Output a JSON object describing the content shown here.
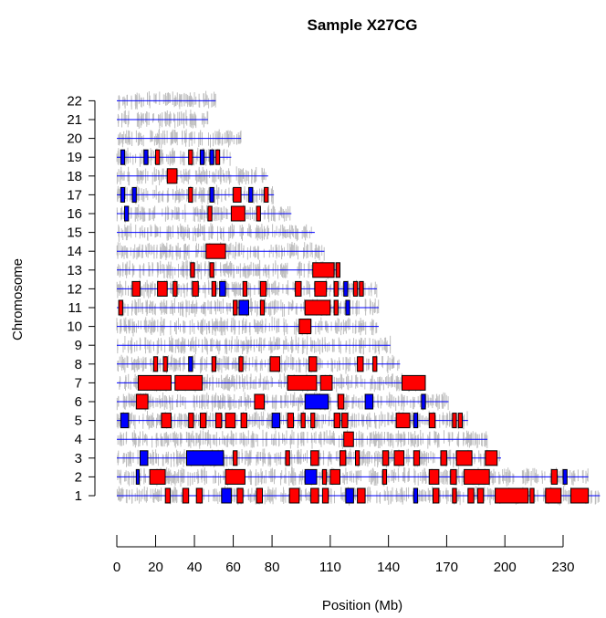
{
  "chart_data": {
    "type": "scatter",
    "title": "Sample X27CG",
    "xlabel": "Position (Mb)",
    "ylabel": "Chromosome",
    "xticks": [
      0,
      20,
      40,
      60,
      80,
      110,
      140,
      170,
      200,
      230
    ],
    "xlim": [
      0,
      246
    ],
    "colors": {
      "gain": "#ff0000",
      "loss": "#0000ff",
      "neutral": "#000000",
      "probe": "#bebebe",
      "baseline": "#0000ff"
    },
    "chromosomes": [
      {
        "name": "1",
        "length": 249,
        "segments": [
          {
            "s": 25,
            "e": 27.5,
            "c": "gain"
          },
          {
            "s": 34,
            "e": 37,
            "c": "gain"
          },
          {
            "s": 41,
            "e": 44,
            "c": "gain"
          },
          {
            "s": 54,
            "e": 59,
            "c": "loss"
          },
          {
            "s": 62,
            "e": 65,
            "c": "gain"
          },
          {
            "s": 72,
            "e": 75,
            "c": "gain"
          },
          {
            "s": 89,
            "e": 94,
            "c": "gain"
          },
          {
            "s": 100,
            "e": 104,
            "c": "gain"
          },
          {
            "s": 106,
            "e": 109,
            "c": "gain"
          },
          {
            "s": 118,
            "e": 122,
            "c": "loss"
          },
          {
            "s": 124,
            "e": 128,
            "c": "gain"
          },
          {
            "s": 153,
            "e": 155,
            "c": "loss"
          },
          {
            "s": 163,
            "e": 166,
            "c": "gain"
          },
          {
            "s": 173,
            "e": 175,
            "c": "gain"
          },
          {
            "s": 181,
            "e": 184,
            "c": "gain"
          },
          {
            "s": 186,
            "e": 189,
            "c": "gain"
          },
          {
            "s": 195,
            "e": 212,
            "c": "gain"
          },
          {
            "s": 213,
            "e": 215,
            "c": "gain"
          },
          {
            "s": 221,
            "e": 229,
            "c": "gain"
          },
          {
            "s": 234,
            "e": 243,
            "c": "gain"
          }
        ]
      },
      {
        "name": "2",
        "length": 243,
        "segments": [
          {
            "s": 10,
            "e": 11.5,
            "c": "loss"
          },
          {
            "s": 17,
            "e": 25,
            "c": "gain"
          },
          {
            "s": 56,
            "e": 66,
            "c": "gain"
          },
          {
            "s": 97,
            "e": 103,
            "c": "loss"
          },
          {
            "s": 106,
            "e": 108,
            "c": "gain"
          },
          {
            "s": 110,
            "e": 115,
            "c": "gain"
          },
          {
            "s": 137,
            "e": 139,
            "c": "gain"
          },
          {
            "s": 161,
            "e": 166,
            "c": "gain"
          },
          {
            "s": 172,
            "e": 175,
            "c": "gain"
          },
          {
            "s": 179,
            "e": 192,
            "c": "gain"
          },
          {
            "s": 224,
            "e": 227,
            "c": "gain"
          },
          {
            "s": 230,
            "e": 232,
            "c": "loss"
          }
        ]
      },
      {
        "name": "3",
        "length": 198,
        "segments": [
          {
            "s": 12,
            "e": 16,
            "c": "loss"
          },
          {
            "s": 36,
            "e": 55,
            "c": "loss"
          },
          {
            "s": 60,
            "e": 62,
            "c": "gain"
          },
          {
            "s": 87,
            "e": 89,
            "c": "gain"
          },
          {
            "s": 100,
            "e": 104,
            "c": "gain"
          },
          {
            "s": 115,
            "e": 118,
            "c": "gain"
          },
          {
            "s": 123,
            "e": 125,
            "c": "gain"
          },
          {
            "s": 137,
            "e": 140,
            "c": "gain"
          },
          {
            "s": 143,
            "e": 148,
            "c": "gain"
          },
          {
            "s": 153,
            "e": 156,
            "c": "gain"
          },
          {
            "s": 167,
            "e": 170,
            "c": "gain"
          },
          {
            "s": 175,
            "e": 183,
            "c": "gain"
          },
          {
            "s": 190,
            "e": 196,
            "c": "gain"
          }
        ]
      },
      {
        "name": "4",
        "length": 191,
        "segments": [
          {
            "s": 117,
            "e": 122,
            "c": "gain"
          }
        ]
      },
      {
        "name": "5",
        "length": 181,
        "segments": [
          {
            "s": 2,
            "e": 6,
            "c": "loss"
          },
          {
            "s": 23,
            "e": 28,
            "c": "gain"
          },
          {
            "s": 37,
            "e": 39.5,
            "c": "gain"
          },
          {
            "s": 43,
            "e": 46,
            "c": "gain"
          },
          {
            "s": 51,
            "e": 54,
            "c": "gain"
          },
          {
            "s": 56,
            "e": 61,
            "c": "gain"
          },
          {
            "s": 64,
            "e": 67,
            "c": "gain"
          },
          {
            "s": 80,
            "e": 84,
            "c": "loss"
          },
          {
            "s": 88,
            "e": 91,
            "c": "gain"
          },
          {
            "s": 95,
            "e": 97,
            "c": "gain"
          },
          {
            "s": 100,
            "e": 102,
            "c": "gain"
          },
          {
            "s": 112,
            "e": 115,
            "c": "gain"
          },
          {
            "s": 116,
            "e": 119,
            "c": "gain"
          },
          {
            "s": 144,
            "e": 151,
            "c": "gain"
          },
          {
            "s": 153,
            "e": 155,
            "c": "loss"
          },
          {
            "s": 161,
            "e": 164,
            "c": "gain"
          },
          {
            "s": 173,
            "e": 175,
            "c": "gain"
          },
          {
            "s": 176,
            "e": 178,
            "c": "gain"
          }
        ]
      },
      {
        "name": "6",
        "length": 171,
        "segments": [
          {
            "s": 10,
            "e": 16,
            "c": "gain"
          },
          {
            "s": 71,
            "e": 76,
            "c": "gain"
          },
          {
            "s": 97,
            "e": 109,
            "c": "loss"
          },
          {
            "s": 114,
            "e": 117,
            "c": "gain"
          },
          {
            "s": 128,
            "e": 132,
            "c": "loss"
          },
          {
            "s": 157,
            "e": 159,
            "c": "loss"
          }
        ]
      },
      {
        "name": "7",
        "length": 159,
        "segments": [
          {
            "s": 11,
            "e": 28,
            "c": "gain"
          },
          {
            "s": 30,
            "e": 44,
            "c": "gain"
          },
          {
            "s": 88,
            "e": 103,
            "c": "gain"
          },
          {
            "s": 105,
            "e": 111,
            "c": "gain"
          },
          {
            "s": 147,
            "e": 159,
            "c": "gain"
          }
        ]
      },
      {
        "name": "8",
        "length": 146,
        "segments": [
          {
            "s": 19,
            "e": 21,
            "c": "gain"
          },
          {
            "s": 24,
            "e": 26,
            "c": "gain"
          },
          {
            "s": 37,
            "e": 39,
            "c": "loss"
          },
          {
            "s": 49,
            "e": 51,
            "c": "gain"
          },
          {
            "s": 63,
            "e": 65,
            "c": "gain"
          },
          {
            "s": 79,
            "e": 84,
            "c": "gain"
          },
          {
            "s": 99,
            "e": 103,
            "c": "gain"
          },
          {
            "s": 124,
            "e": 127,
            "c": "gain"
          },
          {
            "s": 132,
            "e": 134,
            "c": "gain"
          }
        ]
      },
      {
        "name": "9",
        "length": 141,
        "segments": []
      },
      {
        "name": "10",
        "length": 135,
        "segments": [
          {
            "s": 94,
            "e": 100,
            "c": "gain"
          }
        ]
      },
      {
        "name": "11",
        "length": 135,
        "segments": [
          {
            "s": 1,
            "e": 3,
            "c": "gain"
          },
          {
            "s": 60,
            "e": 62,
            "c": "gain"
          },
          {
            "s": 63,
            "e": 68,
            "c": "loss"
          },
          {
            "s": 74,
            "e": 76,
            "c": "gain"
          },
          {
            "s": 97,
            "e": 110,
            "c": "gain"
          },
          {
            "s": 112,
            "e": 114,
            "c": "gain"
          },
          {
            "s": 118,
            "e": 120,
            "c": "loss"
          }
        ]
      },
      {
        "name": "12",
        "length": 134,
        "segments": [
          {
            "s": 8,
            "e": 12,
            "c": "gain"
          },
          {
            "s": 21,
            "e": 26,
            "c": "gain"
          },
          {
            "s": 29,
            "e": 31,
            "c": "gain"
          },
          {
            "s": 39,
            "e": 42,
            "c": "gain"
          },
          {
            "s": 49,
            "e": 51,
            "c": "gain"
          },
          {
            "s": 53,
            "e": 56,
            "c": "loss"
          },
          {
            "s": 65,
            "e": 67,
            "c": "gain"
          },
          {
            "s": 74,
            "e": 77,
            "c": "gain"
          },
          {
            "s": 92,
            "e": 95,
            "c": "gain"
          },
          {
            "s": 102,
            "e": 108,
            "c": "gain"
          },
          {
            "s": 112,
            "e": 114,
            "c": "gain"
          },
          {
            "s": 117,
            "e": 119,
            "c": "loss"
          },
          {
            "s": 122,
            "e": 124,
            "c": "gain"
          },
          {
            "s": 125,
            "e": 127,
            "c": "gain"
          }
        ]
      },
      {
        "name": "13",
        "length": 115,
        "segments": [
          {
            "s": 38,
            "e": 40,
            "c": "gain"
          },
          {
            "s": 48,
            "e": 50,
            "c": "gain"
          },
          {
            "s": 101,
            "e": 112,
            "c": "gain"
          },
          {
            "s": 113,
            "e": 115,
            "c": "gain"
          }
        ]
      },
      {
        "name": "14",
        "length": 107,
        "segments": [
          {
            "s": 46,
            "e": 56,
            "c": "gain"
          }
        ]
      },
      {
        "name": "15",
        "length": 102,
        "segments": []
      },
      {
        "name": "16",
        "length": 90,
        "segments": [
          {
            "s": 4,
            "e": 6,
            "c": "loss"
          },
          {
            "s": 47,
            "e": 49,
            "c": "gain"
          },
          {
            "s": 59,
            "e": 66,
            "c": "gain"
          },
          {
            "s": 72,
            "e": 74,
            "c": "gain"
          }
        ]
      },
      {
        "name": "17",
        "length": 81,
        "segments": [
          {
            "s": 2,
            "e": 4,
            "c": "loss"
          },
          {
            "s": 8,
            "e": 10,
            "c": "loss"
          },
          {
            "s": 37,
            "e": 39,
            "c": "gain"
          },
          {
            "s": 48,
            "e": 50,
            "c": "loss"
          },
          {
            "s": 60,
            "e": 64,
            "c": "gain"
          },
          {
            "s": 68,
            "e": 70,
            "c": "loss"
          },
          {
            "s": 76,
            "e": 78,
            "c": "gain"
          }
        ]
      },
      {
        "name": "18",
        "length": 78,
        "segments": [
          {
            "s": 26,
            "e": 31,
            "c": "gain"
          }
        ]
      },
      {
        "name": "19",
        "length": 59,
        "segments": [
          {
            "s": 2,
            "e": 4,
            "c": "loss"
          },
          {
            "s": 14,
            "e": 16,
            "c": "loss"
          },
          {
            "s": 20,
            "e": 22,
            "c": "gain"
          },
          {
            "s": 37,
            "e": 39,
            "c": "gain"
          },
          {
            "s": 43,
            "e": 45,
            "c": "loss"
          },
          {
            "s": 48,
            "e": 50,
            "c": "loss"
          },
          {
            "s": 51,
            "e": 53,
            "c": "gain"
          }
        ]
      },
      {
        "name": "20",
        "length": 64,
        "segments": []
      },
      {
        "name": "21",
        "length": 47,
        "segments": []
      },
      {
        "name": "22",
        "length": 51,
        "segments": []
      }
    ]
  }
}
